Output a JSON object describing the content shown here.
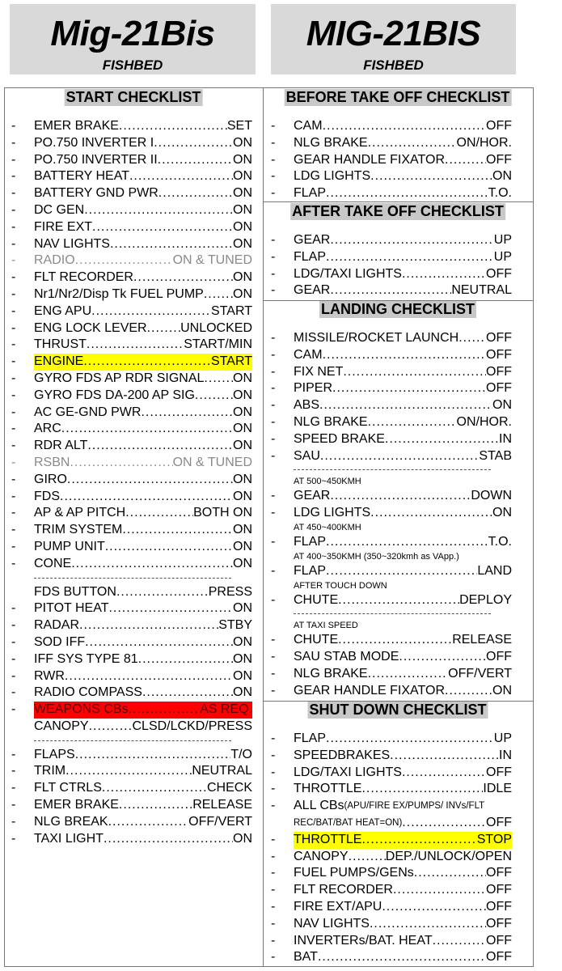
{
  "titles": [
    {
      "title": "Mig-21Bis",
      "subtitle": "FISHBED"
    },
    {
      "title": "MIG-21BIS",
      "subtitle": "FISHBED"
    }
  ],
  "sections": [
    {
      "id": "start",
      "heading": "START CHECKLIST",
      "rows": [
        {
          "l": "EMER BRAKE",
          "v": "SET"
        },
        {
          "l": "PO.750 INVERTER I",
          "v": "ON"
        },
        {
          "l": "PO.750 INVERTER II",
          "v": "ON"
        },
        {
          "l": "BATTERY HEAT",
          "v": "ON"
        },
        {
          "l": "BATTERY GND PWR",
          "v": "ON"
        },
        {
          "l": "DC GEN",
          "v": "ON"
        },
        {
          "l": "FIRE EXT",
          "v": "ON"
        },
        {
          "l": "NAV LIGHTS",
          "v": "ON"
        },
        {
          "l": "RADIO",
          "v": "ON & TUNED",
          "style": "gray"
        },
        {
          "l": "FLT RECORDER",
          "v": "ON"
        },
        {
          "l": "Nr1/Nr2/Disp Tk FUEL PUMP",
          "v": "ON"
        },
        {
          "l": "ENG APU ",
          "v": "START"
        },
        {
          "l": "ENG LOCK LEVER",
          "v": "UNLOCKED"
        },
        {
          "l": "THRUST",
          "v": "START/MIN"
        },
        {
          "l": "ENGINE",
          "v": "START",
          "style": "yellow"
        },
        {
          "l": "GYRO FDS AP RDR SIGNAL",
          "v": "ON"
        },
        {
          "l": "GYRO FDS DA-200 AP SIG",
          "v": "ON"
        },
        {
          "l": "AC GE-GND PWR",
          "v": "ON"
        },
        {
          "l": "ARC",
          "v": "ON"
        },
        {
          "l": "RDR ALT",
          "v": "ON"
        },
        {
          "l": "RSBN",
          "v": "ON & TUNED",
          "style": "gray"
        },
        {
          "l": "GIRO",
          "v": "ON"
        },
        {
          "l": "FDS",
          "v": "ON"
        },
        {
          "l": "AP & AP PITCH",
          "v": "BOTH ON"
        },
        {
          "l": "TRIM SYSTEM",
          "v": "ON"
        },
        {
          "l": "PUMP UNIT",
          "v": "ON"
        },
        {
          "l": "CONE",
          "v": "ON"
        },
        {
          "type": "sep"
        },
        {
          "l": "FDS BUTTON",
          "v": "PRESS",
          "nodash": true
        },
        {
          "l": "PITOT HEAT",
          "v": "ON"
        },
        {
          "l": "RADAR",
          "v": "STBY"
        },
        {
          "l": "SOD IFF",
          "v": "ON"
        },
        {
          "l": "IFF SYS TYPE 81",
          "v": "ON"
        },
        {
          "l": "RWR",
          "v": "ON"
        },
        {
          "l": "RADIO COMPASS",
          "v": "ON"
        },
        {
          "l": "WEAPONS CBs",
          "v": "AS REQ.",
          "style": "red"
        },
        {
          "l": "CANOPY",
          "v": "CLSD/LCKD/PRESS",
          "nodash": true
        },
        {
          "type": "sep"
        },
        {
          "l": "FLAPS",
          "v": "T/O"
        },
        {
          "l": "TRIM",
          "v": "NEUTRAL"
        },
        {
          "l": "FLT CTRLS",
          "v": "CHECK"
        },
        {
          "l": "EMER BRAKE",
          "v": "RELEASE"
        },
        {
          "l": "NLG BREAK",
          "v": "OFF/VERT"
        },
        {
          "l": "TAXI LIGHT",
          "v": "ON"
        }
      ]
    },
    {
      "id": "before-takeoff",
      "heading": "BEFORE TAKE OFF CHECKLIST",
      "rows": [
        {
          "l": "CAM",
          "v": "OFF"
        },
        {
          "l": "NLG BRAKE ",
          "v": "ON/HOR."
        },
        {
          "l": "GEAR HANDLE FIXATOR",
          "v": "OFF"
        },
        {
          "l": "LDG LIGHTS",
          "v": "ON"
        },
        {
          "l": "FLAP",
          "v": "T.O."
        }
      ]
    },
    {
      "id": "after-takeoff",
      "heading": "AFTER TAKE OFF CHECKLIST",
      "rows": [
        {
          "l": "GEAR",
          "v": "UP"
        },
        {
          "l": "FLAP",
          "v": "UP"
        },
        {
          "l": "LDG/TAXI LIGHTS",
          "v": "OFF"
        },
        {
          "l": "GEAR",
          "v": "NEUTRAL"
        }
      ]
    },
    {
      "id": "landing",
      "heading": "LANDING CHECKLIST",
      "rows": [
        {
          "l": "MISSILE/ROCKET LAUNCH",
          "v": "OFF"
        },
        {
          "l": "CAM",
          "v": "OFF"
        },
        {
          "l": "FIX NET",
          "v": "OFF"
        },
        {
          "l": "PIPER",
          "v": "OFF"
        },
        {
          "l": "ABS",
          "v": "ON"
        },
        {
          "l": "NLG BRAKE",
          "v": "ON/HOR."
        },
        {
          "l": "SPEED BRAKE",
          "v": "IN"
        },
        {
          "l": "SAU",
          "v": "STAB"
        },
        {
          "type": "sep"
        },
        {
          "type": "note",
          "text": "AT 500~450KMH"
        },
        {
          "l": "GEAR ",
          "v": "DOWN"
        },
        {
          "l": "LDG LIGHTS",
          "v": "ON"
        },
        {
          "type": "note",
          "text": "AT 450~400KMH"
        },
        {
          "l": "FLAP",
          "v": "T.O."
        },
        {
          "type": "note",
          "text": "AT 400~350KMH (350~320kmh as VApp.)"
        },
        {
          "l": "FLAP",
          "v": "LAND"
        },
        {
          "type": "note",
          "text": "AFTER TOUCH DOWN"
        },
        {
          "l": "CHUTE",
          "v": "DEPLOY"
        },
        {
          "type": "sep"
        },
        {
          "type": "note",
          "text": "AT TAXI SPEED"
        },
        {
          "l": "CHUTE",
          "v": "RELEASE"
        },
        {
          "l": "SAU STAB MODE",
          "v": "OFF"
        },
        {
          "l": "NLG BRAKE",
          "v": "OFF/VERT"
        },
        {
          "l": "GEAR HANDLE FIXATOR",
          "v": "ON"
        }
      ]
    },
    {
      "id": "shutdown",
      "heading": "SHUT DOWN CHECKLIST",
      "rows": [
        {
          "l": "FLAP",
          "v": "UP"
        },
        {
          "l": "SPEEDBRAKES",
          "v": "IN"
        },
        {
          "l": "LDG/TAXI LIGHTS",
          "v": "OFF"
        },
        {
          "l": "THROTTLE",
          "v": "IDLE"
        },
        {
          "l": "ALL CBs ",
          "small": "(APU/FIRE EX/PUMPS/ INVs/FLT",
          "v": "",
          "noleader": true
        },
        {
          "l": "",
          "small": "REC/BAT/BAT  HEAT=ON)",
          "v": "OFF",
          "nodash": true
        },
        {
          "l": "THROTTLE",
          "v": "STOP",
          "style": "yellow"
        },
        {
          "l": "CANOPY",
          "v": "DEP./UNLOCK/OPEN"
        },
        {
          "l": "FUEL PUMPS/GENs",
          "v": "OFF"
        },
        {
          "l": "FLT RECORDER",
          "v": "OFF"
        },
        {
          "l": "FIRE EXT/APU",
          "v": "OFF"
        },
        {
          "l": "NAV LIGHTS",
          "v": "OFF"
        },
        {
          "l": "INVERTERs/BAT. HEAT",
          "v": "OFF"
        },
        {
          "l": "BAT",
          "v": "OFF"
        }
      ]
    }
  ],
  "colors": {
    "title_bg": "#d9d9d9",
    "heading_bg": "#c8c8c8",
    "highlight_yellow": "#ffff00",
    "highlight_red": "#ff0000",
    "muted_text": "#8a8a8a"
  }
}
